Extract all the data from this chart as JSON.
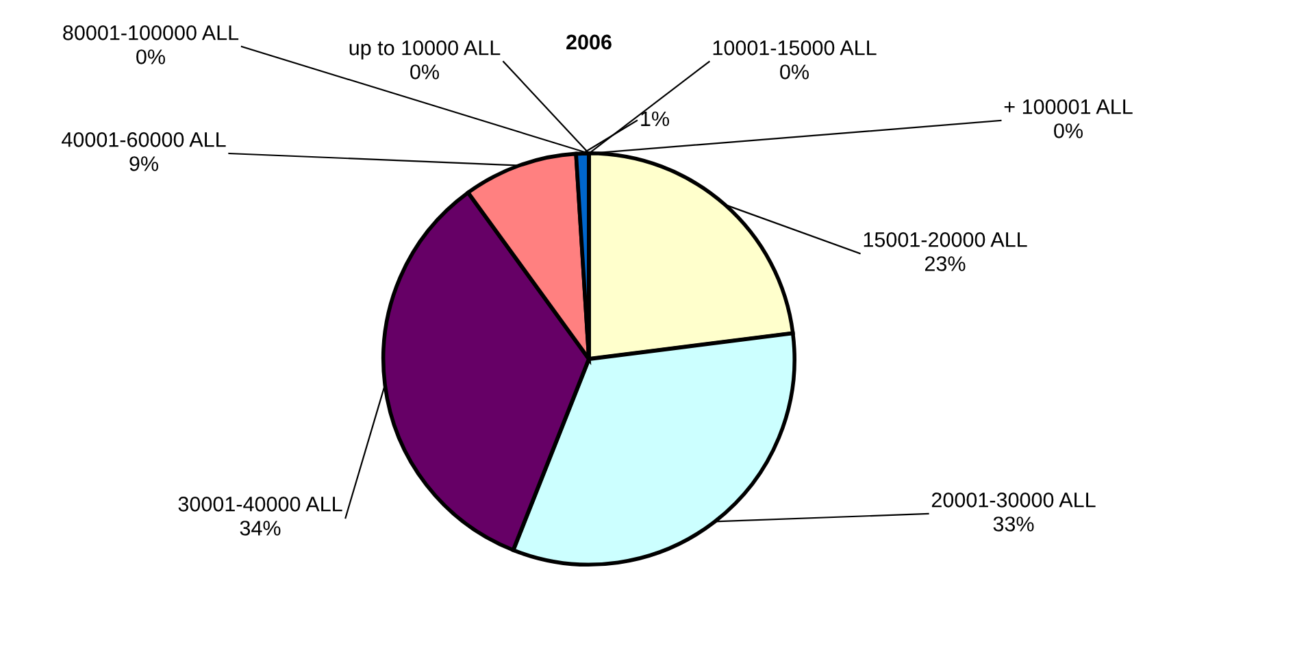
{
  "chart_data": {
    "type": "pie",
    "title": "2006",
    "categories": [
      "15001-20000 ALL",
      "20001-30000 ALL",
      "30001-40000 ALL",
      "40001-60000 ALL",
      null,
      "80001-100000 ALL",
      "+ 100001 ALL",
      "up to 10000 ALL",
      "10001-15000 ALL"
    ],
    "values": [
      23,
      33,
      34,
      9,
      1,
      0,
      0,
      0,
      0
    ],
    "value_labels": [
      "23%",
      "33%",
      "34%",
      "9%",
      "1%",
      "0%",
      "0%",
      "0%",
      "0%"
    ],
    "colors": [
      "#ffffcc",
      "#ccffff",
      "#660066",
      "#ff8080",
      "#0066cc",
      "#9999ff",
      "#993366",
      "#ffffcc",
      "#ccffff"
    ]
  }
}
